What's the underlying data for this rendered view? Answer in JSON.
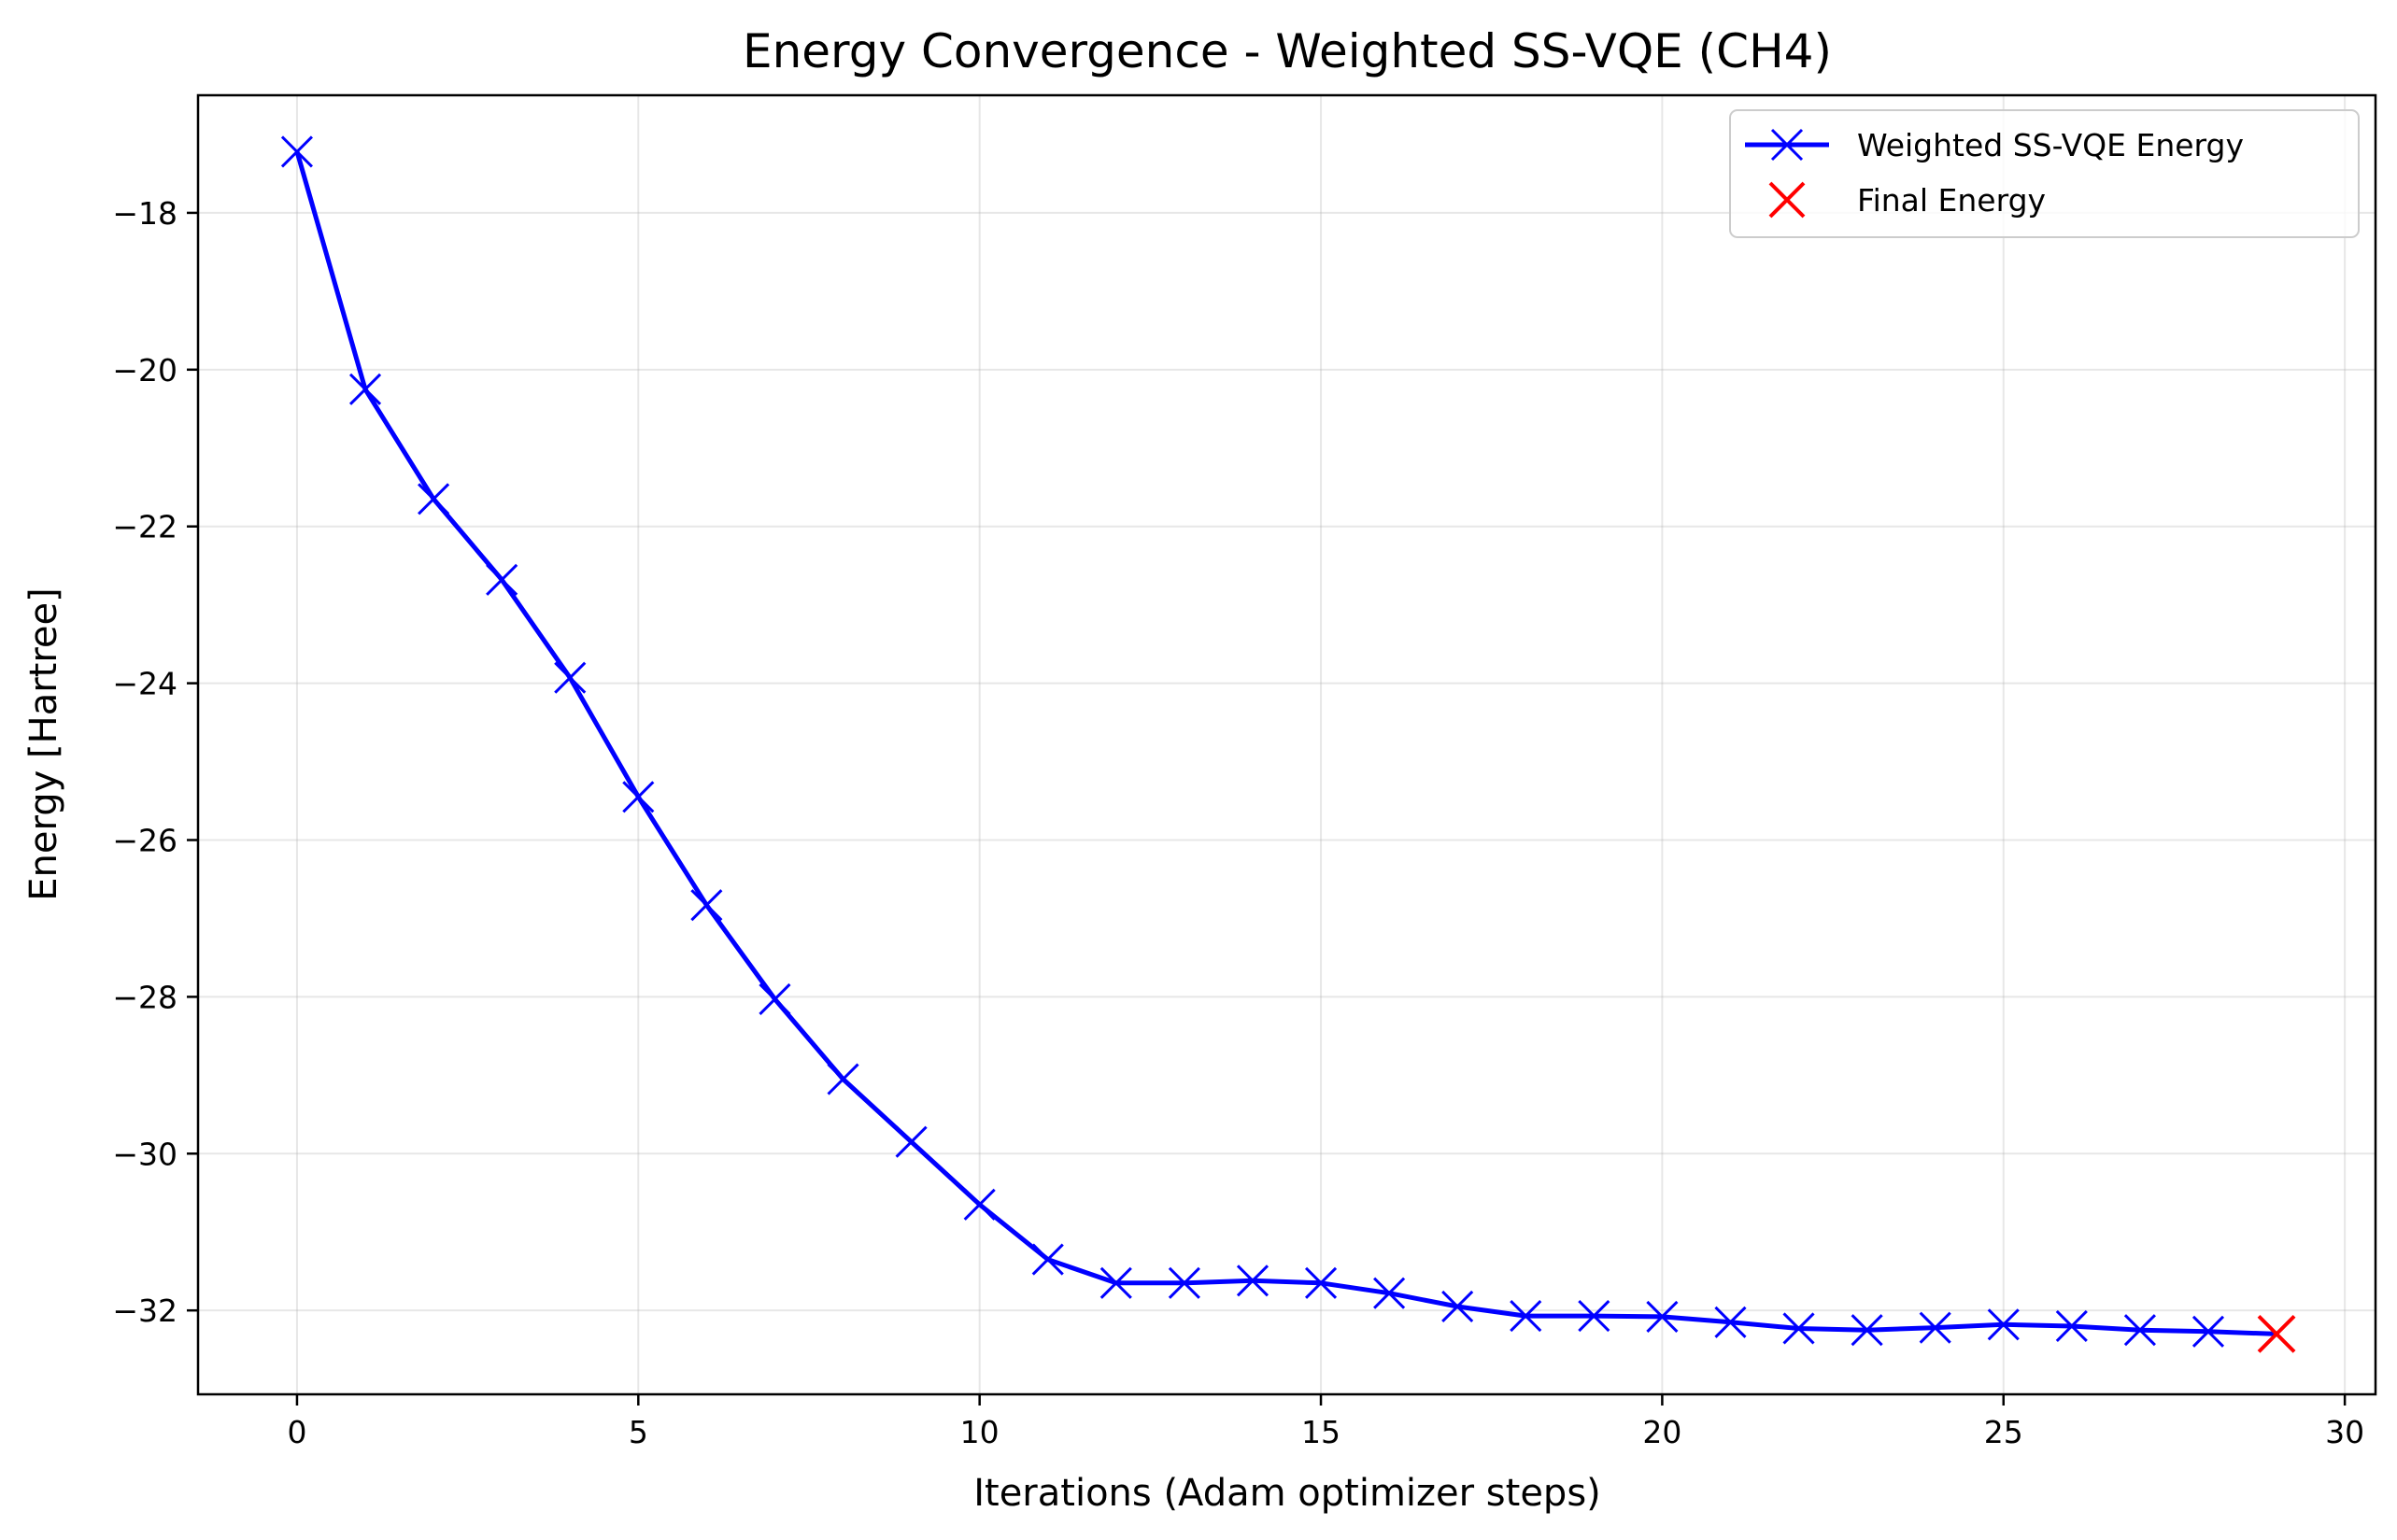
{
  "chart_data": {
    "type": "line",
    "title": "Energy Convergence - Weighted SS-VQE (CH4)",
    "xlabel": "Iterations (Adam optimizer steps)",
    "ylabel": "Energy [Hartree]",
    "xlim": [
      -1.45,
      30.45
    ],
    "ylim": [
      -33.07,
      -16.5
    ],
    "xticks": [
      0,
      5,
      10,
      15,
      20,
      25,
      30
    ],
    "yticks": [
      -18,
      -20,
      -22,
      -24,
      -26,
      -28,
      -30,
      -32
    ],
    "xtick_labels": [
      "0",
      "5",
      "10",
      "15",
      "20",
      "25",
      "30"
    ],
    "ytick_labels": [
      "−18",
      "−20",
      "−22",
      "−24",
      "−26",
      "−28",
      "−30",
      "−32"
    ],
    "grid": true,
    "legend_position": "upper right",
    "series": [
      {
        "name": "Weighted SS-VQE Energy",
        "color": "#0000ff",
        "marker": "x-marker",
        "x": [
          0,
          1,
          2,
          3,
          4,
          5,
          6,
          7,
          8,
          9,
          10,
          11,
          12,
          13,
          14,
          15,
          16,
          17,
          18,
          19,
          20,
          21,
          22,
          23,
          24,
          25,
          26,
          27,
          28,
          29
        ],
        "y": [
          -17.22,
          -20.25,
          -21.65,
          -22.68,
          -23.93,
          -25.45,
          -26.83,
          -28.03,
          -29.05,
          -29.85,
          -30.65,
          -31.35,
          -31.65,
          -31.65,
          -31.62,
          -31.65,
          -31.78,
          -31.95,
          -32.07,
          -32.07,
          -32.08,
          -32.15,
          -32.23,
          -32.25,
          -32.22,
          -32.18,
          -32.2,
          -32.25,
          -32.27,
          -32.3
        ]
      },
      {
        "name": "Final Energy",
        "color": "#ff0000",
        "marker": "x-marker",
        "x": [
          29
        ],
        "y": [
          -32.3
        ]
      }
    ]
  }
}
